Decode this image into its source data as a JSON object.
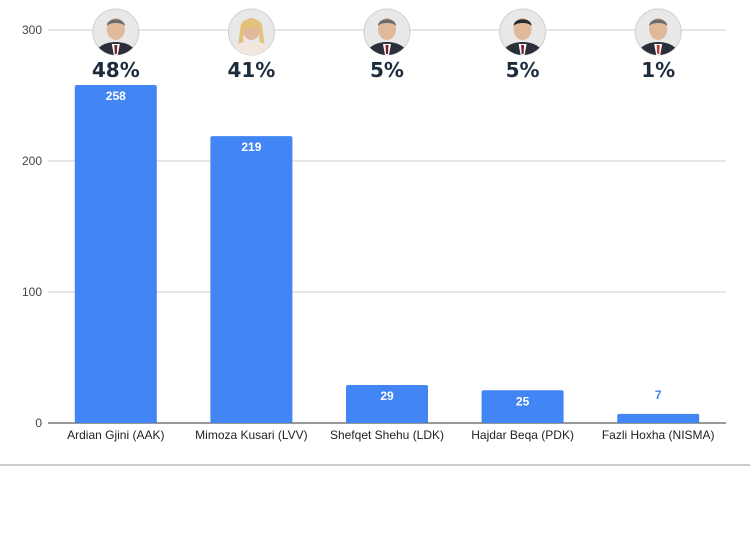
{
  "chart_data": {
    "type": "bar",
    "title": "",
    "xlabel": "",
    "ylabel": "",
    "ylim": [
      0,
      300
    ],
    "yticks": [
      "0",
      "100",
      "200",
      "300"
    ],
    "grid": true,
    "bar_color": "#4285f4",
    "categories": [
      "Ardian Gjini (AAK)",
      "Mimoza Kusari (LVV)",
      "Shefqet Shehu (LDK)",
      "Hajdar Beqa (PDK)",
      "Fazli Hoxha (NISMA)"
    ],
    "values": [
      258,
      219,
      29,
      25,
      7
    ],
    "value_labels": [
      "258",
      "219",
      "29",
      "25",
      "7"
    ],
    "percentages": [
      "48%",
      "41%",
      "5%",
      "5%",
      "1%"
    ],
    "avatars": [
      "candidate-photo",
      "candidate-photo",
      "candidate-photo",
      "candidate-photo",
      "candidate-photo"
    ]
  }
}
